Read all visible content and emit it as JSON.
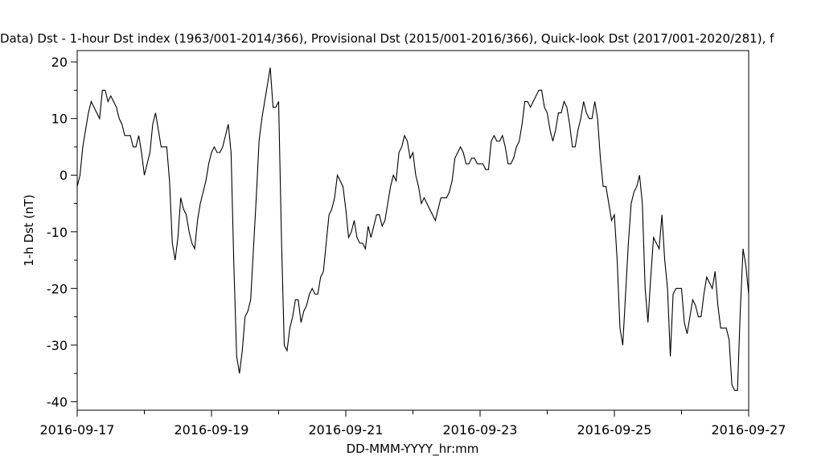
{
  "chart_data": {
    "type": "line",
    "title": "Data)  Dst - 1-hour Dst index (1963/001-2014/366), Provisional Dst (2015/001-2016/366), Quick-look Dst (2017/001-2020/281), f",
    "xlabel": "DD-MMM-YYYY_hr:mm",
    "ylabel": "1-h Dst (nT)",
    "xlim": [
      "2016-09-17",
      "2016-09-27"
    ],
    "ylim": [
      -41.5,
      22
    ],
    "x_ticks": [
      "2016-09-17",
      "2016-09-19",
      "2016-09-21",
      "2016-09-23",
      "2016-09-25",
      "2016-09-27"
    ],
    "y_ticks": [
      20,
      10,
      0,
      -10,
      -20,
      -30,
      -40
    ],
    "grid": false,
    "series": [
      {
        "start": "2016-09-17T00:00",
        "interval_hours": 1,
        "values": [
          -2,
          0,
          5,
          8,
          11,
          13,
          12,
          11,
          10,
          15,
          15,
          13,
          14,
          13,
          12,
          10,
          9,
          7,
          7,
          7,
          5,
          5,
          7,
          4,
          0,
          2,
          4,
          9,
          11,
          8,
          5,
          5,
          5,
          -1,
          -12,
          -15,
          -11,
          -4,
          -6,
          -7,
          -10,
          -12,
          -13,
          -8,
          -5,
          -3,
          -1,
          2,
          4,
          5,
          4,
          4,
          5,
          7,
          9,
          4,
          -16,
          -32,
          -35,
          -31,
          -25,
          -24,
          -22,
          -13,
          -4,
          6,
          10,
          13,
          16,
          19,
          12,
          12,
          13,
          -11,
          -30,
          -31,
          -27,
          -25,
          -22,
          -22,
          -26,
          -24,
          -23,
          -21,
          -20,
          -21,
          -21,
          -18,
          -17,
          -12,
          -7,
          -6,
          -4,
          0,
          -1,
          -2,
          -6,
          -11,
          -10,
          -8,
          -11,
          -12,
          -12,
          -13,
          -9,
          -11,
          -9,
          -7,
          -7,
          -9,
          -8,
          -5,
          -2,
          0,
          -1,
          4,
          5,
          7,
          6,
          3,
          4,
          0,
          -2,
          -5,
          -4,
          -5,
          -6,
          -7,
          -8,
          -6,
          -4,
          -4,
          -4,
          -3,
          -1,
          3,
          4,
          5,
          4,
          2,
          2,
          3,
          3,
          2,
          2,
          2,
          1,
          1,
          6,
          7,
          6,
          6,
          7,
          5,
          2,
          2,
          3,
          5,
          6,
          9,
          13,
          13,
          12,
          13,
          14,
          15,
          15,
          12,
          11,
          8,
          6,
          8,
          11,
          11,
          13,
          12,
          9,
          5,
          5,
          8,
          10,
          13,
          11,
          10,
          10,
          13,
          10,
          3,
          -2,
          -2,
          -5,
          -8,
          -7,
          -15,
          -27,
          -30,
          -21,
          -12,
          -5,
          -3,
          -2,
          0,
          -5,
          -20,
          -26,
          -18,
          -11,
          -12,
          -13,
          -7,
          -15,
          -20,
          -32,
          -21,
          -20,
          -20,
          -20,
          -26,
          -28,
          -25,
          -22,
          -23,
          -25,
          -25,
          -21,
          -18,
          -19,
          -20,
          -17,
          -23,
          -27,
          -27,
          -27,
          -29,
          -37,
          -38,
          -38,
          -24,
          -13,
          -16,
          -21
        ]
      }
    ]
  }
}
